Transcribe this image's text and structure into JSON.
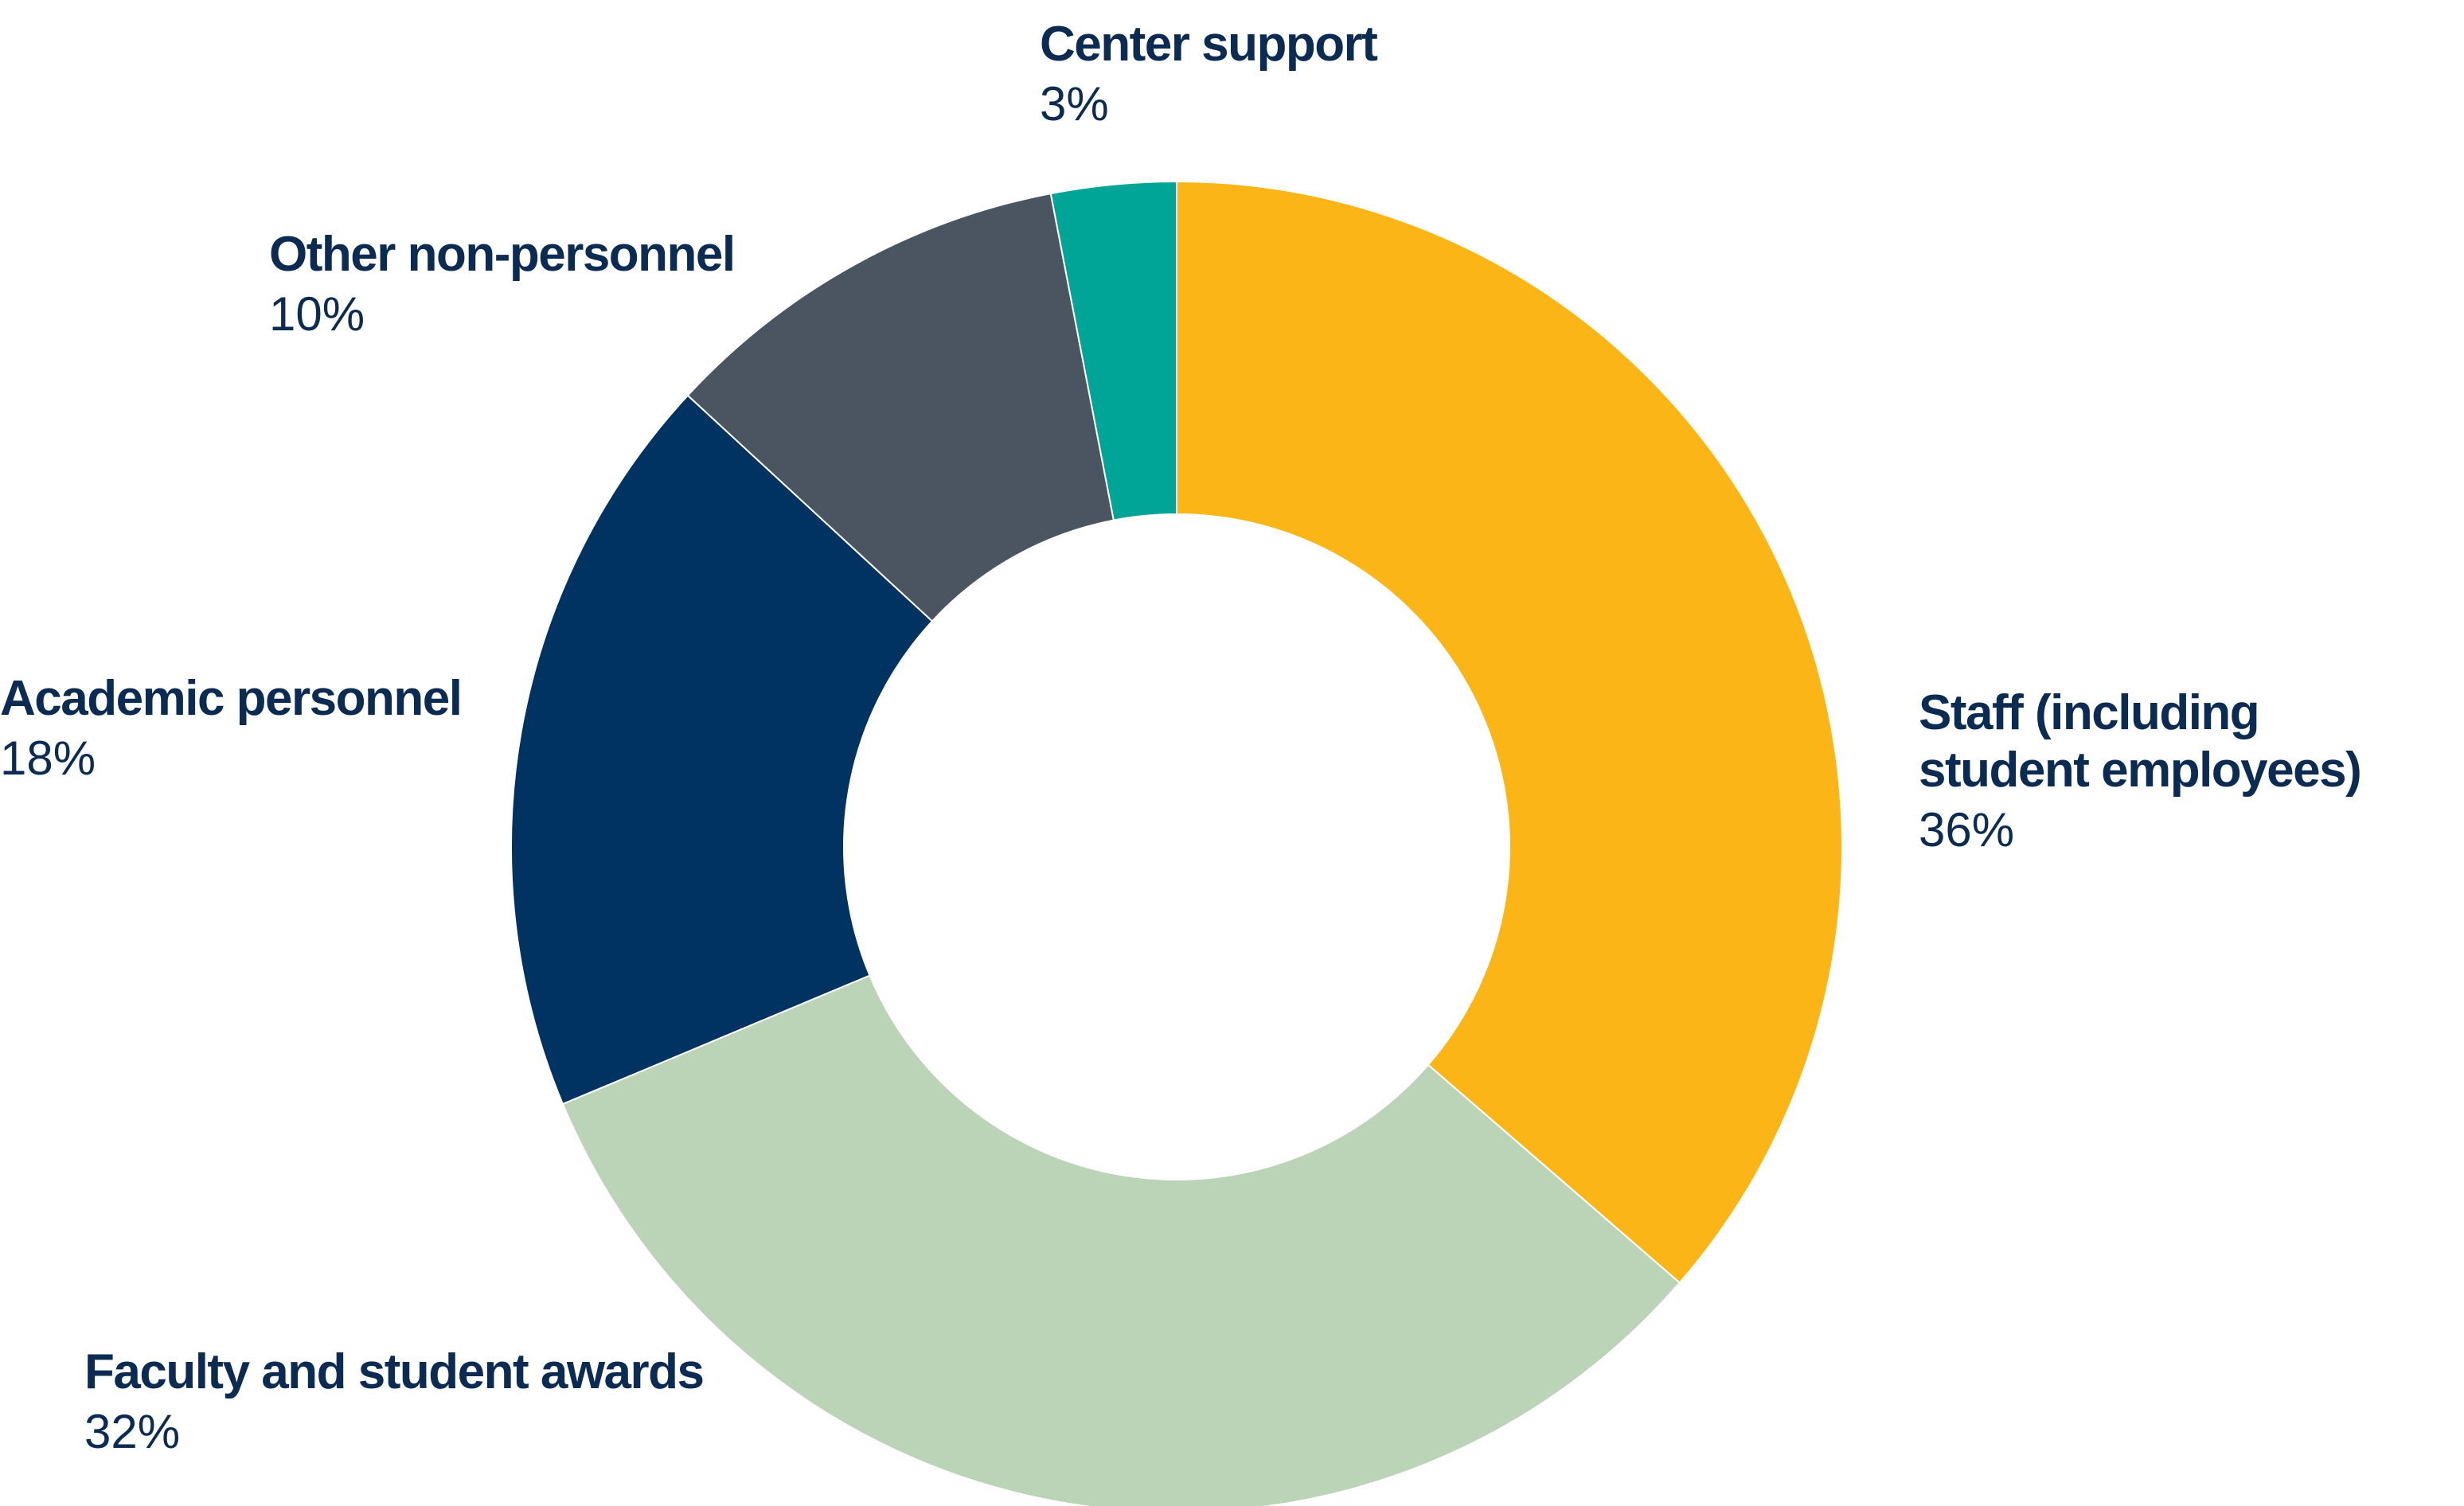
{
  "colors": {
    "label_text": "#0c2b53",
    "slice_divider": "#ffffff"
  },
  "chart_data": {
    "type": "pie",
    "variant": "donut",
    "title": "",
    "legend": "none",
    "slices": [
      {
        "label": "Staff (including student employees)",
        "label_lines": [
          "Staff (including",
          "student employees)"
        ],
        "value": 36,
        "display": "36%",
        "color": "#fbb517"
      },
      {
        "label": "Faculty and student awards",
        "label_lines": [
          "Faculty and student awards"
        ],
        "value": 32,
        "display": "32%",
        "color": "#bbd3b7"
      },
      {
        "label": "Academic personnel",
        "label_lines": [
          "Academic personnel"
        ],
        "value": 18,
        "display": "18%",
        "color": "#003262"
      },
      {
        "label": "Other non-personnel",
        "label_lines": [
          "Other non-personnel"
        ],
        "value": 10,
        "display": "10%",
        "color": "#4a5561"
      },
      {
        "label": "Center support",
        "label_lines": [
          "Center support"
        ],
        "value": 3,
        "display": "3%",
        "color": "#00a597"
      }
    ]
  }
}
